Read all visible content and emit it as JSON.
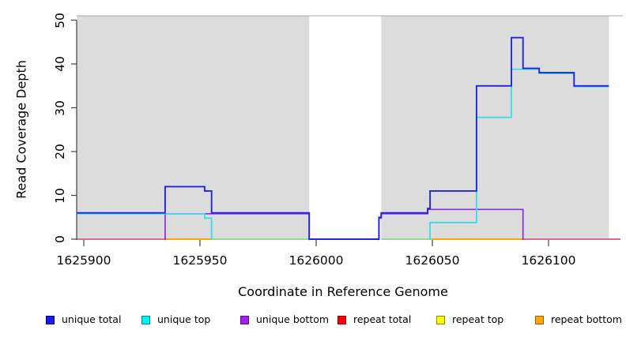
{
  "figure": {
    "background": "#ffffff",
    "panel_background": "#dcdcdc",
    "panel_top_border": "#a9a9a9",
    "axis_color": "#444444"
  },
  "chart_data": {
    "type": "line",
    "subtype": "step-coverage-plot",
    "title": "",
    "xlabel": "Coordinate in Reference Genome",
    "ylabel": "Read Coverage Depth",
    "xlim": [
      1625897,
      1626131
    ],
    "ylim": [
      0,
      50
    ],
    "x_ticks": [
      1625900,
      1625950,
      1626000,
      1626050,
      1626100
    ],
    "y_ticks": [
      0,
      10,
      20,
      30,
      40,
      50
    ],
    "grid": "off",
    "gap_region_no_panel": [
      1625997,
      1626028
    ],
    "series": [
      {
        "name": "unique total",
        "color": "#2323e6",
        "width": 1.9,
        "steps": [
          [
            1625897,
            6
          ],
          [
            1625935,
            12
          ],
          [
            1625952,
            11
          ],
          [
            1625955,
            6
          ],
          [
            1625997,
            0
          ],
          [
            1626027,
            5
          ],
          [
            1626028,
            6
          ],
          [
            1626048,
            7
          ],
          [
            1626049,
            11
          ],
          [
            1626069,
            35
          ],
          [
            1626084,
            46
          ],
          [
            1626089,
            39
          ],
          [
            1626096,
            38
          ],
          [
            1626111,
            35
          ],
          [
            1626126,
            35
          ]
        ]
      },
      {
        "name": "unique top",
        "color": "#2fdcec",
        "width": 1.7,
        "segments": [
          [
            [
              1625897,
              6
            ],
            [
              1625952,
              6
            ],
            [
              1625952,
              5
            ],
            [
              1625955,
              5
            ],
            [
              1625955,
              0
            ]
          ],
          [
            [
              1626049,
              0
            ],
            [
              1626049,
              4
            ],
            [
              1626069,
              4
            ],
            [
              1626069,
              28
            ],
            [
              1626084,
              28
            ],
            [
              1626084,
              39
            ],
            [
              1626096,
              39
            ],
            [
              1626096,
              38
            ],
            [
              1626111,
              38
            ],
            [
              1626111,
              35
            ],
            [
              1626126,
              35
            ]
          ]
        ]
      },
      {
        "name": "unique bottom",
        "color": "#8a2be2",
        "width": 1.7,
        "segments": [
          [
            [
              1625935,
              0
            ],
            [
              1625935,
              6
            ],
            [
              1625997,
              6
            ],
            [
              1625997,
              0
            ]
          ],
          [
            [
              1626027,
              0
            ],
            [
              1626027,
              5
            ],
            [
              1626028,
              5
            ],
            [
              1626028,
              6
            ],
            [
              1626048,
              6
            ],
            [
              1626048,
              7
            ],
            [
              1626089,
              7
            ],
            [
              1626089,
              0
            ]
          ]
        ]
      },
      {
        "name": "repeat total",
        "color": "#ff0000",
        "width": 1.7,
        "constant_value": 0,
        "extent": [
          1625897,
          1626131
        ]
      },
      {
        "name": "repeat top",
        "color": "#ffff00",
        "width": 1.7,
        "constant_value": 0,
        "extent": [
          1625897,
          1626131
        ]
      },
      {
        "name": "repeat bottom",
        "color": "#ffa500",
        "width": 1.7,
        "constant_value": 0,
        "extent": [
          1625897,
          1626131
        ]
      }
    ],
    "zero_line_visible_segments": [
      {
        "from": 1625897,
        "to": 1625935,
        "color": "#db6899"
      },
      {
        "from": 1625935,
        "to": 1625955,
        "color": "#ffa500"
      },
      {
        "from": 1625955,
        "to": 1625997,
        "color": "#8fdf8f"
      },
      {
        "from": 1626028,
        "to": 1626050,
        "color": "#8fdf8f"
      },
      {
        "from": 1626050,
        "to": 1626089,
        "color": "#ffa500"
      },
      {
        "from": 1626089,
        "to": 1626131,
        "color": "#db6899"
      }
    ]
  },
  "legend": {
    "items": [
      {
        "label": "unique total",
        "color": "#1a1ae8",
        "border": "#000099"
      },
      {
        "label": "unique top",
        "color": "#00f2f2",
        "border": "#008b8b"
      },
      {
        "label": "unique bottom",
        "color": "#a020f0",
        "border": "#5a0a96"
      },
      {
        "label": "repeat total",
        "color": "#fb0007",
        "border": "#900000"
      },
      {
        "label": "repeat top",
        "color": "#fffb00",
        "border": "#8b8b00"
      },
      {
        "label": "repeat bottom",
        "color": "#ffa500",
        "border": "#a05a00"
      }
    ]
  }
}
